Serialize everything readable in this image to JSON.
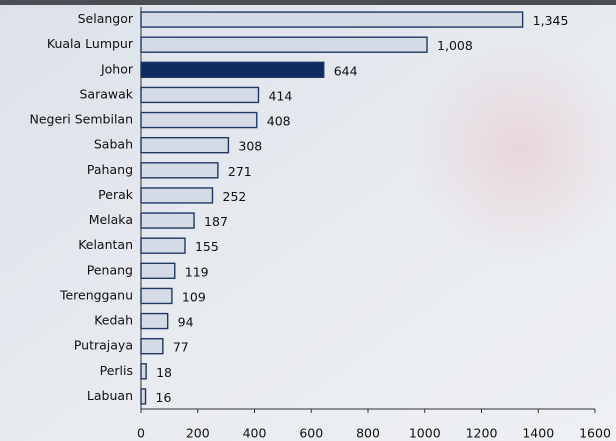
{
  "chart_data": {
    "type": "barh",
    "categories": [
      "Selangor",
      "Kuala Lumpur",
      "Johor",
      "Sarawak",
      "Negeri Sembilan",
      "Sabah",
      "Pahang",
      "Perak",
      "Melaka",
      "Kelantan",
      "Penang",
      "Terengganu",
      "Kedah",
      "Putrajaya",
      "Perlis",
      "Labuan"
    ],
    "values": [
      1345,
      1008,
      644,
      414,
      408,
      308,
      271,
      252,
      187,
      155,
      119,
      109,
      94,
      77,
      18,
      16
    ],
    "value_labels": [
      "1,345",
      "1,008",
      "644",
      "414",
      "408",
      "308",
      "271",
      "252",
      "187",
      "155",
      "119",
      "109",
      "94",
      "77",
      "18",
      "16"
    ],
    "colors": [
      "#d5dbe5",
      "#d5dbe5",
      "#0d2b5e",
      "#d5dbe5",
      "#d5dbe5",
      "#d5dbe5",
      "#d5dbe5",
      "#d5dbe5",
      "#d5dbe5",
      "#d5dbe5",
      "#d5dbe5",
      "#d5dbe5",
      "#d5dbe5",
      "#d5dbe5",
      "#d5dbe5",
      "#d5dbe5"
    ],
    "edge_color": "#1f3864",
    "xlim": [
      0,
      1600
    ],
    "xticks": [
      0,
      200,
      400,
      600,
      800,
      1000,
      1200,
      1400,
      1600
    ]
  }
}
